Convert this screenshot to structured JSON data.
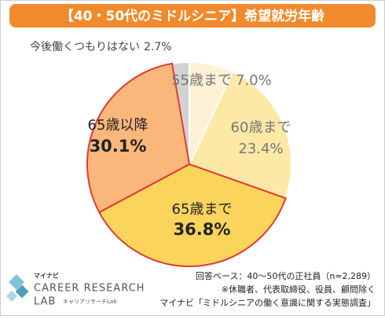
{
  "chart_data": {
    "type": "pie",
    "title": "【40・50代のミドルシニア】希望就労年齢",
    "categories": [
      "55歳まで",
      "60歳まで",
      "65歳まで",
      "65歳以降",
      "今後働くつもりはない"
    ],
    "values": [
      7.0,
      23.4,
      36.8,
      30.1,
      2.7
    ],
    "value_labels": [
      "7.0%",
      "23.4%",
      "36.8%",
      "30.1%",
      "2.7%"
    ],
    "colors": [
      "#fdf1d6",
      "#fde8a6",
      "#fbd45c",
      "#f9b77c",
      "#d2d2d2"
    ],
    "edgecolors": [
      "#ffffff",
      "#ffffff",
      "#e03a2f",
      "#e03a2f",
      "#ffffff"
    ],
    "notes": [
      "回答ベース：40～50代の正社員（n=2,289）",
      "※休職者、代表取締役、役員、顧問除く",
      "マイナビ「ミドルシニアの働く意識に関する実態調査」"
    ]
  },
  "logo": {
    "brand": "マイナビ",
    "line1": "CAREER RESEARCH",
    "line2": "LAB",
    "sub": "キャリアリサーチLab"
  }
}
